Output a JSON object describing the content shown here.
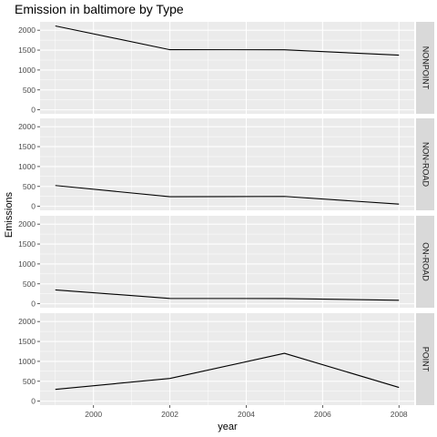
{
  "chart_data": {
    "type": "line",
    "title": "Emission in baltimore by Type",
    "xlabel": "year",
    "ylabel": "Emissions",
    "xlim": [
      1998.6,
      2008.4
    ],
    "ylim": [
      -100,
      2210
    ],
    "x_ticks": [
      2000,
      2002,
      2004,
      2006,
      2008
    ],
    "y_ticks": [
      0,
      500,
      1000,
      1500,
      2000
    ],
    "x": [
      1999,
      2002,
      2005,
      2008
    ],
    "grid": true,
    "facet_strip": "right",
    "panels": [
      {
        "name": "NONPOINT",
        "values": [
          2107,
          1510,
          1509,
          1373
        ]
      },
      {
        "name": "NON-ROAD",
        "values": [
          523,
          241,
          249,
          55
        ]
      },
      {
        "name": "ON-ROAD",
        "values": [
          347,
          134,
          130,
          88
        ]
      },
      {
        "name": "POINT",
        "values": [
          297,
          570,
          1202,
          345
        ]
      }
    ],
    "colors": {
      "panel_bg": "#ebebeb",
      "grid_major": "#ffffff",
      "strip_bg": "#d9d9d9",
      "line": "#000000"
    }
  }
}
